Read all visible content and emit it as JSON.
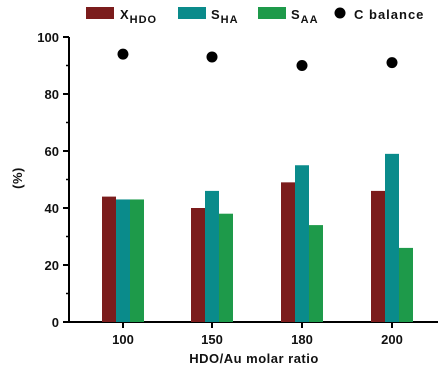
{
  "chart_data": {
    "type": "bar",
    "categories": [
      "100",
      "150",
      "180",
      "200"
    ],
    "series": [
      {
        "name": "X",
        "sub": "HDO",
        "color": "#7b1c1c",
        "values": [
          44,
          40,
          49,
          46
        ]
      },
      {
        "name": "S",
        "sub": "HA",
        "color": "#0a8b8b",
        "values": [
          43,
          46,
          55,
          59
        ]
      },
      {
        "name": "S",
        "sub": "AA",
        "color": "#1e9a4a",
        "values": [
          43,
          38,
          34,
          26
        ]
      }
    ],
    "scatter": {
      "name": "C balance",
      "color": "#000000",
      "values": [
        94,
        93,
        90,
        91
      ]
    },
    "xlabel": "HDO/Au molar ratio",
    "ylabel": "(%)",
    "ylim": [
      0,
      100
    ],
    "yticks": [
      "0",
      "20",
      "40",
      "60",
      "80",
      "100"
    ],
    "legend_position": "top"
  }
}
